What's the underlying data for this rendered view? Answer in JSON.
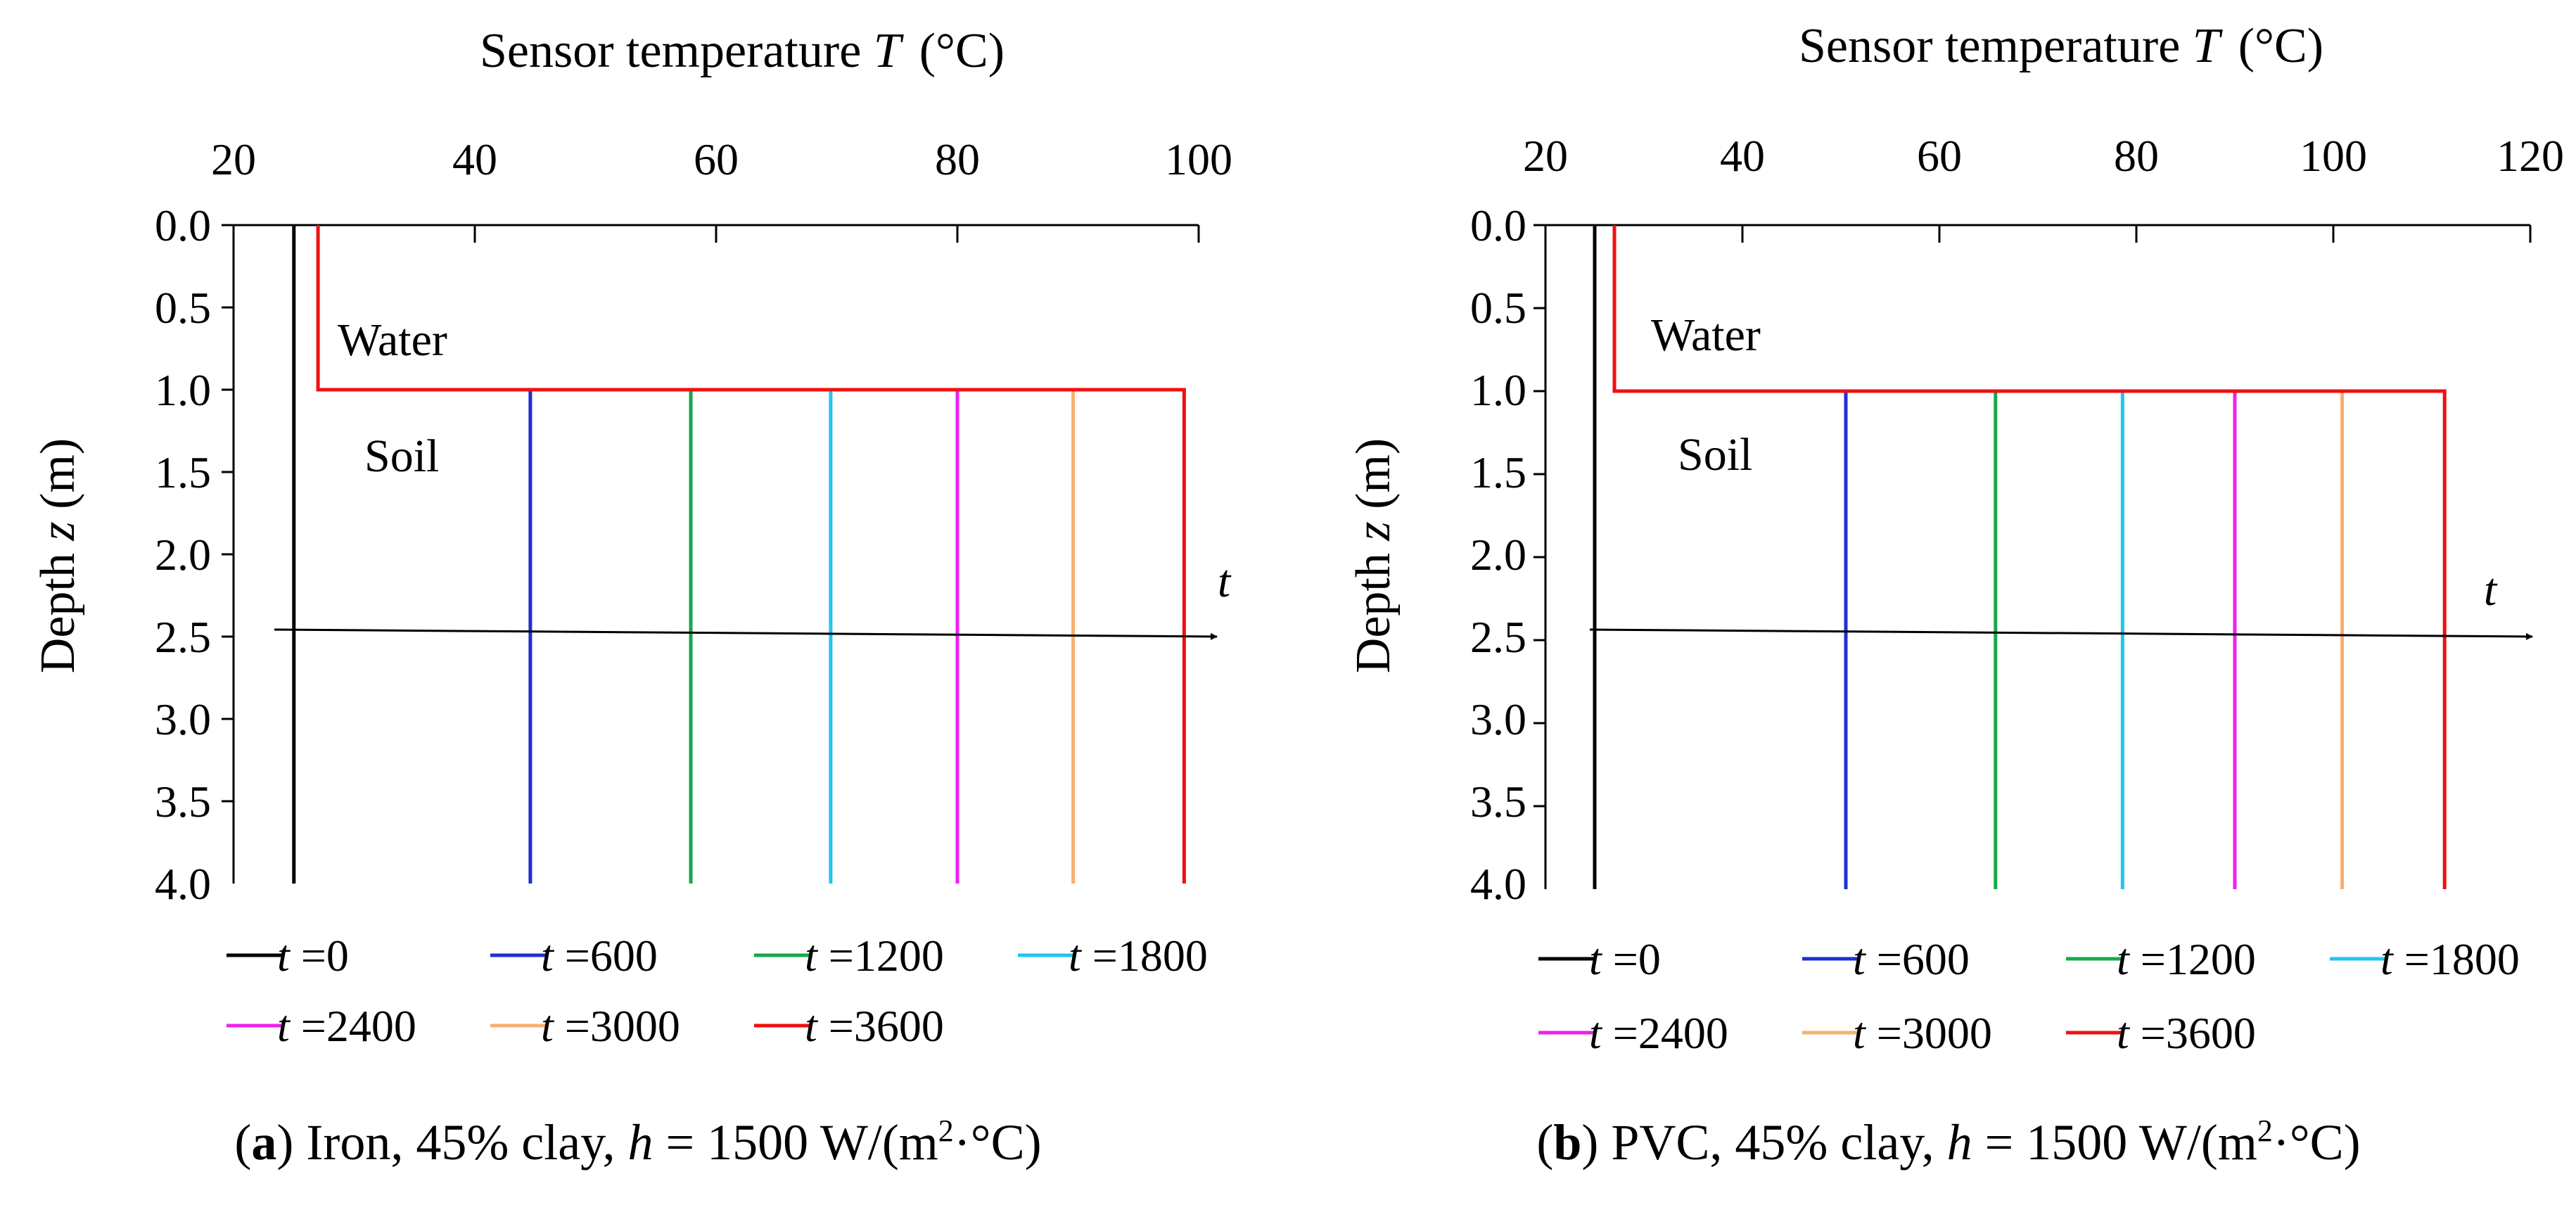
{
  "chart_data": [
    {
      "panel": "a",
      "type": "line",
      "title": "Sensor temperature T (°C)",
      "xlabel_text": "Sensor temperature ",
      "xlabel_var": "T",
      "xlabel_unit": "(°C)",
      "ylabel_text": "Depth ",
      "ylabel_var": "z",
      "ylabel_unit": " (m)",
      "xlim": [
        20,
        100
      ],
      "xticks": [
        20,
        40,
        60,
        80,
        100
      ],
      "xtick_labels": [
        "20",
        "40",
        "60",
        "80",
        "100"
      ],
      "ylim": [
        0,
        4
      ],
      "yticks": [
        0,
        0.5,
        1,
        1.5,
        2,
        2.5,
        3,
        3.5,
        4
      ],
      "ytick_labels": [
        "0.0",
        "0.5",
        "1.0",
        "1.5",
        "2.0",
        "2.5",
        "3.0",
        "3.5",
        "4.0"
      ],
      "series": [
        {
          "name": "t =0",
          "color": "#000000",
          "points": [
            [
              25,
              0
            ],
            [
              25,
              4
            ]
          ]
        },
        {
          "name": "t =600",
          "color": "#1f2fd0",
          "points": [
            [
              44.6,
              1
            ],
            [
              44.6,
              4
            ]
          ]
        },
        {
          "name": "t =1200",
          "color": "#17a84a",
          "points": [
            [
              57.9,
              1
            ],
            [
              57.9,
              4
            ]
          ]
        },
        {
          "name": "t =1800",
          "color": "#1ec6f0",
          "points": [
            [
              69.5,
              1
            ],
            [
              69.5,
              4
            ]
          ]
        },
        {
          "name": "t =2400",
          "color": "#ee22ee",
          "points": [
            [
              80,
              1
            ],
            [
              80,
              4
            ]
          ]
        },
        {
          "name": "t =3000",
          "color": "#f8b070",
          "points": [
            [
              89.6,
              1
            ],
            [
              89.6,
              4
            ]
          ]
        },
        {
          "name": "t =3600",
          "color": "#ee1111",
          "points": [
            [
              27,
              0
            ],
            [
              27,
              1
            ],
            [
              98.8,
              1
            ],
            [
              98.8,
              4
            ]
          ]
        }
      ],
      "time_arrow": {
        "label": "t",
        "depth": 2.46
      },
      "annotations": [
        "Water",
        "Soil"
      ],
      "caption_letter": "a",
      "caption_text_1": " Iron, 45% clay, ",
      "caption_h": "h",
      "caption_text_2": " = 1500 W/(m",
      "caption_sup": "2",
      "caption_text_3": "·°C)"
    },
    {
      "panel": "b",
      "type": "line",
      "title": "Sensor temperature T (°C)",
      "xlabel_text": "Sensor temperature ",
      "xlabel_var": "T",
      "xlabel_unit": "(°C)",
      "ylabel_text": "Depth ",
      "ylabel_var": "z",
      "ylabel_unit": " (m)",
      "xlim": [
        20,
        120
      ],
      "xticks": [
        20,
        40,
        60,
        80,
        100,
        120
      ],
      "xtick_labels": [
        "20",
        "40",
        "60",
        "80",
        "100",
        "120"
      ],
      "ylim": [
        0,
        4
      ],
      "yticks": [
        0,
        0.5,
        1,
        1.5,
        2,
        2.5,
        3,
        3.5,
        4
      ],
      "ytick_labels": [
        "0.0",
        "0.5",
        "1.0",
        "1.5",
        "2.0",
        "2.5",
        "3.0",
        "3.5",
        "4.0"
      ],
      "series": [
        {
          "name": "t =0",
          "color": "#000000",
          "points": [
            [
              25,
              0
            ],
            [
              25,
              4
            ]
          ]
        },
        {
          "name": "t =600",
          "color": "#1f2fd0",
          "points": [
            [
              50.5,
              1
            ],
            [
              50.5,
              4
            ]
          ]
        },
        {
          "name": "t =1200",
          "color": "#17a84a",
          "points": [
            [
              65.7,
              1
            ],
            [
              65.7,
              4
            ]
          ]
        },
        {
          "name": "t =1800",
          "color": "#1ec6f0",
          "points": [
            [
              78.6,
              1
            ],
            [
              78.6,
              4
            ]
          ]
        },
        {
          "name": "t =2400",
          "color": "#ee22ee",
          "points": [
            [
              90,
              1
            ],
            [
              90,
              4
            ]
          ]
        },
        {
          "name": "t =3000",
          "color": "#f8b070",
          "points": [
            [
              100.9,
              1
            ],
            [
              100.9,
              4
            ]
          ]
        },
        {
          "name": "t =3600",
          "color": "#ee1111",
          "points": [
            [
              27,
              0
            ],
            [
              27,
              1
            ],
            [
              111.3,
              1
            ],
            [
              111.3,
              4
            ]
          ]
        }
      ],
      "time_arrow": {
        "label": "t",
        "depth": 2.46
      },
      "annotations": [
        "Water",
        "Soil"
      ],
      "caption_letter": "b",
      "caption_text_1": " PVC, 45% clay, ",
      "caption_h": "h",
      "caption_text_2": " = 1500 W/(m",
      "caption_sup": "2",
      "caption_text_3": "·°C)"
    }
  ]
}
